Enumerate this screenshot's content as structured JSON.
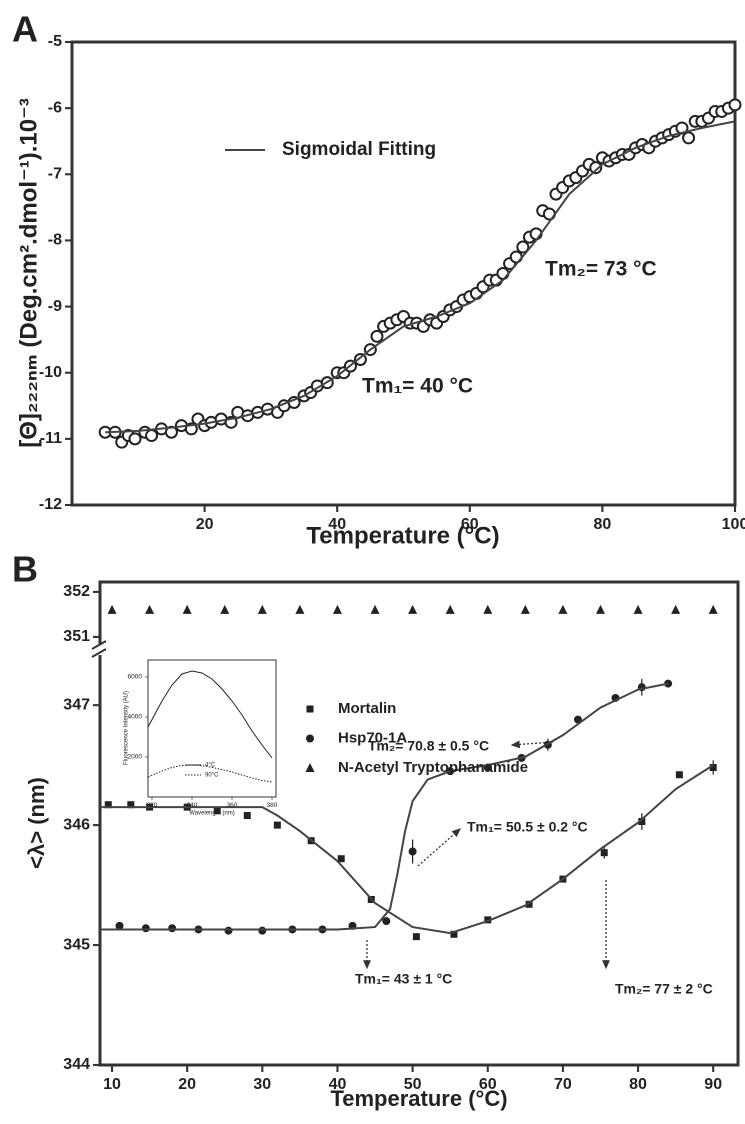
{
  "chart_data": [
    {
      "type": "scatter",
      "panel_label": "A",
      "x_label": "Temperature (°C)",
      "y_label": "[Θ]₂₂₂ₙₘ (Deg.cm².dmol⁻¹).10⁻³",
      "xlim": [
        0,
        100
      ],
      "ylim": [
        -12,
        -5
      ],
      "xticks": [
        20,
        40,
        60,
        80,
        100
      ],
      "yticks": [
        -12,
        -11,
        -10,
        -9,
        -8,
        -7,
        -6,
        -5
      ],
      "series": [
        {
          "marker": "circle-open",
          "color": "#222222",
          "x": [
            5,
            6.5,
            7.5,
            8.5,
            9.5,
            11,
            12,
            13.5,
            15,
            16.5,
            18,
            19,
            20,
            21,
            22.5,
            24,
            25,
            26.5,
            28,
            29.5,
            31,
            32,
            33.5,
            35,
            36,
            37,
            38.5,
            40,
            41,
            42,
            43.5,
            45,
            46,
            47,
            48,
            49,
            50,
            51,
            52,
            53,
            54,
            55,
            56,
            57,
            58,
            59,
            60,
            61,
            62,
            63,
            64,
            65,
            66,
            67,
            68,
            69,
            70,
            71,
            72,
            73,
            74,
            75,
            76,
            77,
            78,
            79,
            80,
            81,
            82,
            83,
            84,
            85,
            86,
            87,
            88,
            89,
            90,
            91,
            92,
            93,
            94,
            95,
            96,
            97,
            98,
            99,
            100
          ],
          "values": [
            -10.9,
            -10.9,
            -11.05,
            -10.95,
            -11.0,
            -10.9,
            -10.95,
            -10.85,
            -10.9,
            -10.8,
            -10.85,
            -10.7,
            -10.8,
            -10.75,
            -10.7,
            -10.75,
            -10.6,
            -10.65,
            -10.6,
            -10.55,
            -10.6,
            -10.5,
            -10.45,
            -10.35,
            -10.3,
            -10.2,
            -10.15,
            -10.0,
            -10.0,
            -9.9,
            -9.8,
            -9.65,
            -9.45,
            -9.3,
            -9.25,
            -9.2,
            -9.15,
            -9.25,
            -9.25,
            -9.3,
            -9.2,
            -9.25,
            -9.15,
            -9.05,
            -9.0,
            -8.9,
            -8.85,
            -8.8,
            -8.7,
            -8.6,
            -8.6,
            -8.5,
            -8.35,
            -8.25,
            -8.1,
            -7.95,
            -7.9,
            -7.55,
            -7.6,
            -7.3,
            -7.2,
            -7.1,
            -7.05,
            -6.95,
            -6.85,
            -6.9,
            -6.75,
            -6.8,
            -6.75,
            -6.7,
            -6.7,
            -6.6,
            -6.55,
            -6.6,
            -6.5,
            -6.45,
            -6.4,
            -6.35,
            -6.3,
            -6.45,
            -6.2,
            -6.2,
            -6.15,
            -6.05,
            -6.05,
            -6.0,
            -5.95
          ]
        },
        {
          "name": "Sigmoidal Fitting",
          "line": true,
          "color": "#444444",
          "x": [
            5,
            10,
            15,
            20,
            25,
            30,
            35,
            40,
            45,
            50,
            55,
            60,
            65,
            70,
            75,
            80,
            85,
            90,
            95,
            100
          ],
          "values": [
            -10.9,
            -10.88,
            -10.83,
            -10.77,
            -10.68,
            -10.55,
            -10.35,
            -10.05,
            -9.65,
            -9.3,
            -9.15,
            -8.95,
            -8.6,
            -8.0,
            -7.3,
            -6.85,
            -6.6,
            -6.42,
            -6.3,
            -6.2
          ]
        }
      ],
      "annotations": [
        "Tm₂= 73 °C",
        "Tm₁= 40 °C"
      ]
    },
    {
      "type": "scatter",
      "panel_label": "B",
      "x_label": "Temperature (°C)",
      "y_label": "<λ> (nm)",
      "xlim": [
        8.4,
        93.3
      ],
      "ylim": [
        344,
        347.46
      ],
      "y2lim": [
        350.71,
        352.22
      ],
      "xticks": [
        10,
        20,
        30,
        40,
        50,
        60,
        70,
        80,
        90
      ],
      "yticks": [
        344,
        345,
        346,
        347
      ],
      "y2ticks": [
        351,
        352
      ],
      "series": [
        {
          "name": "Mortalin",
          "marker": "square",
          "color": "#222222",
          "x": [
            9.5,
            12.5,
            15,
            20,
            24,
            28,
            32,
            36.5,
            40.5,
            44.5,
            50.5,
            55.5,
            60,
            65.5,
            70,
            75.5,
            80.5,
            85.5,
            90
          ],
          "values": [
            346.17,
            346.17,
            346.15,
            346.15,
            346.12,
            346.08,
            346.0,
            345.87,
            345.72,
            345.38,
            345.07,
            345.09,
            345.21,
            345.34,
            345.55,
            345.77,
            346.03,
            346.42,
            346.48
          ],
          "errors": [
            0.02,
            0.02,
            0.02,
            0.02,
            0.02,
            0.02,
            0.02,
            0.02,
            0.02,
            0.02,
            0.02,
            0.02,
            0.02,
            0.02,
            0.02,
            0.05,
            0.07,
            0.02,
            0.06
          ]
        },
        {
          "name": "Hsp70-1A",
          "marker": "circle",
          "color": "#222222",
          "x": [
            11,
            14.5,
            18,
            21.5,
            25.5,
            30,
            34,
            38,
            42,
            46.5,
            50,
            55,
            60,
            64.5,
            68,
            72,
            77,
            80.5,
            84
          ],
          "values": [
            345.16,
            345.14,
            345.14,
            345.13,
            345.12,
            345.12,
            345.13,
            345.13,
            345.16,
            345.2,
            345.78,
            346.45,
            346.48,
            346.56,
            346.67,
            346.88,
            347.06,
            347.15,
            347.18
          ],
          "errors": [
            0.02,
            0.02,
            0.02,
            0.02,
            0.02,
            0.02,
            0.02,
            0.02,
            0.02,
            0.02,
            0.1,
            0.02,
            0.02,
            0.02,
            0.05,
            0.02,
            0.02,
            0.07,
            0.02
          ]
        },
        {
          "name": "N-Acetyl Tryptophanamide",
          "marker": "triangle",
          "color": "#222222",
          "axis": "y2",
          "x": [
            10,
            15,
            20,
            25,
            30,
            35,
            40,
            45,
            50,
            55,
            60,
            65,
            70,
            75,
            80,
            85,
            90
          ],
          "values": [
            351.6,
            351.6,
            351.6,
            351.6,
            351.6,
            351.6,
            351.6,
            351.6,
            351.6,
            351.6,
            351.6,
            351.6,
            351.6,
            351.6,
            351.6,
            351.6,
            351.6
          ]
        },
        {
          "line": true,
          "color": "#444444",
          "x": [
            8.4,
            30,
            32,
            35,
            40,
            45,
            50,
            55,
            60,
            65,
            70,
            75,
            80,
            85,
            90
          ],
          "values": [
            346.15,
            346.15,
            346.08,
            345.95,
            345.7,
            345.35,
            345.15,
            345.1,
            345.2,
            345.33,
            345.55,
            345.8,
            346.02,
            346.3,
            346.5
          ]
        },
        {
          "line": true,
          "color": "#444444",
          "x": [
            8.4,
            40,
            45,
            47,
            48,
            49,
            50,
            52,
            55,
            60,
            65,
            70,
            75,
            80,
            84
          ],
          "values": [
            345.13,
            345.13,
            345.15,
            345.3,
            345.6,
            345.95,
            346.2,
            346.38,
            346.45,
            346.5,
            346.57,
            346.75,
            346.98,
            347.13,
            347.18
          ]
        }
      ],
      "annotations": [
        "Tm₂= 70.8 ± 0.5 °C",
        "Tm₁= 50.5 ± 0.2 °C",
        "Tm₁= 43 ± 1 °C",
        "Tm₂= 77 ± 2 °C"
      ]
    },
    {
      "type": "line",
      "x_label": "Wavelenght (nm)",
      "y_label": "Fluorescence Intensity (AU)",
      "xlim": [
        318,
        382
      ],
      "ylim": [
        0,
        6850
      ],
      "xticks": [
        320,
        340,
        360,
        380
      ],
      "yticks": [
        2000,
        4000,
        6000
      ],
      "series": [
        {
          "name": "4°C",
          "line": true,
          "color": "#222222",
          "x": [
            318,
            325,
            330,
            335,
            340,
            345,
            350,
            355,
            360,
            365,
            370,
            375,
            380
          ],
          "values": [
            3500,
            4800,
            5600,
            6150,
            6300,
            6200,
            5900,
            5400,
            4800,
            4100,
            3300,
            2600,
            1950
          ]
        },
        {
          "name": "90°C",
          "line": true,
          "dash": "dotted",
          "color": "#222222",
          "x": [
            318,
            325,
            330,
            335,
            340,
            345,
            350,
            355,
            360,
            365,
            370,
            375,
            380
          ],
          "values": [
            1000,
            1300,
            1480,
            1580,
            1600,
            1570,
            1480,
            1370,
            1250,
            1100,
            950,
            830,
            750
          ]
        }
      ]
    }
  ]
}
